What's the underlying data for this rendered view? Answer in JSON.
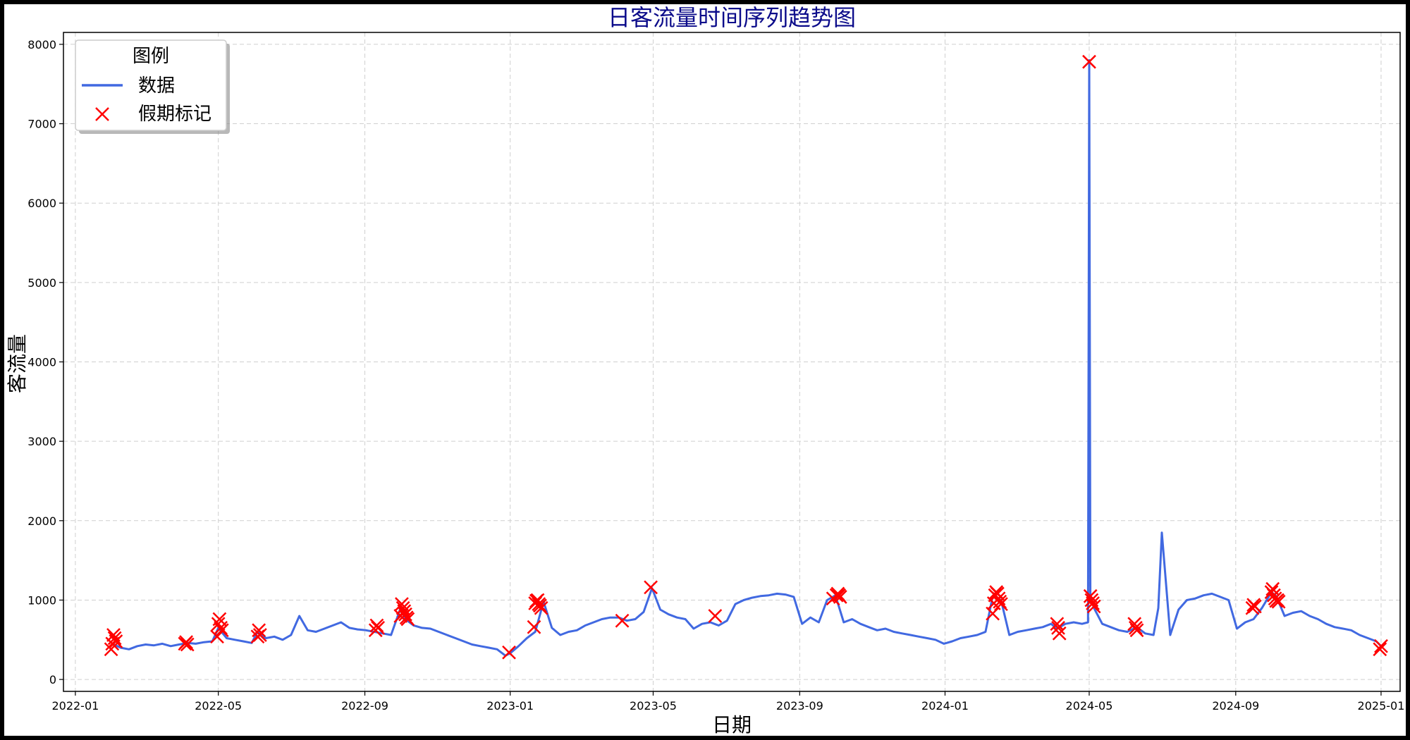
{
  "chart_data": {
    "type": "line",
    "title": "日客流量时间序列趋势图",
    "xlabel": "日期",
    "ylabel": "客流量",
    "xlim": [
      "2021-12-22",
      "2025-01-17"
    ],
    "ylim": [
      -150,
      8150
    ],
    "x_ticks": [
      "2022-01",
      "2022-05",
      "2022-09",
      "2023-01",
      "2023-05",
      "2023-09",
      "2024-01",
      "2024-05",
      "2024-09",
      "2025-01"
    ],
    "y_ticks": [
      0,
      1000,
      2000,
      3000,
      4000,
      5000,
      6000,
      7000,
      8000
    ],
    "grid": true,
    "legend": {
      "title": "图例",
      "position": "top-left",
      "entries": [
        "数据",
        "假期标记"
      ]
    },
    "colors": {
      "line": "#4169e1",
      "marker": "#ff0000",
      "title": "#0b0b8a"
    },
    "series": [
      {
        "name": "数据",
        "type": "line",
        "x": [
          "2022-02-01",
          "2022-02-08",
          "2022-02-15",
          "2022-02-22",
          "2022-03-01",
          "2022-03-08",
          "2022-03-15",
          "2022-03-22",
          "2022-03-29",
          "2022-04-05",
          "2022-04-12",
          "2022-04-19",
          "2022-04-26",
          "2022-05-01",
          "2022-05-08",
          "2022-05-15",
          "2022-05-22",
          "2022-05-29",
          "2022-06-03",
          "2022-06-10",
          "2022-06-17",
          "2022-06-24",
          "2022-07-01",
          "2022-07-08",
          "2022-07-15",
          "2022-07-22",
          "2022-07-29",
          "2022-08-05",
          "2022-08-12",
          "2022-08-19",
          "2022-08-26",
          "2022-09-02",
          "2022-09-09",
          "2022-09-16",
          "2022-09-23",
          "2022-10-01",
          "2022-10-05",
          "2022-10-12",
          "2022-10-19",
          "2022-10-26",
          "2022-11-02",
          "2022-11-09",
          "2022-11-16",
          "2022-11-23",
          "2022-11-30",
          "2022-12-07",
          "2022-12-14",
          "2022-12-21",
          "2022-12-28",
          "2023-01-01",
          "2023-01-08",
          "2023-01-15",
          "2023-01-22",
          "2023-01-29",
          "2023-02-05",
          "2023-02-12",
          "2023-02-19",
          "2023-02-26",
          "2023-03-05",
          "2023-03-12",
          "2023-03-19",
          "2023-03-26",
          "2023-04-02",
          "2023-04-09",
          "2023-04-16",
          "2023-04-23",
          "2023-04-30",
          "2023-05-07",
          "2023-05-14",
          "2023-05-21",
          "2023-05-28",
          "2023-06-04",
          "2023-06-11",
          "2023-06-18",
          "2023-06-25",
          "2023-07-02",
          "2023-07-09",
          "2023-07-16",
          "2023-07-23",
          "2023-07-30",
          "2023-08-06",
          "2023-08-13",
          "2023-08-20",
          "2023-08-27",
          "2023-09-03",
          "2023-09-10",
          "2023-09-17",
          "2023-09-24",
          "2023-10-01",
          "2023-10-08",
          "2023-10-15",
          "2023-10-22",
          "2023-10-29",
          "2023-11-05",
          "2023-11-12",
          "2023-11-19",
          "2023-11-26",
          "2023-12-03",
          "2023-12-10",
          "2023-12-17",
          "2023-12-24",
          "2023-12-31",
          "2024-01-07",
          "2024-01-14",
          "2024-01-21",
          "2024-01-28",
          "2024-02-04",
          "2024-02-10",
          "2024-02-17",
          "2024-02-24",
          "2024-03-02",
          "2024-03-09",
          "2024-03-16",
          "2024-03-23",
          "2024-03-30",
          "2024-04-04",
          "2024-04-11",
          "2024-04-18",
          "2024-04-25",
          "2024-04-30",
          "2024-05-01",
          "2024-05-02",
          "2024-05-05",
          "2024-05-12",
          "2024-05-19",
          "2024-05-26",
          "2024-06-02",
          "2024-06-10",
          "2024-06-17",
          "2024-06-24",
          "2024-06-28",
          "2024-07-01",
          "2024-07-08",
          "2024-07-15",
          "2024-07-22",
          "2024-07-29",
          "2024-08-05",
          "2024-08-12",
          "2024-08-19",
          "2024-08-26",
          "2024-09-02",
          "2024-09-09",
          "2024-09-16",
          "2024-09-23",
          "2024-10-01",
          "2024-10-05",
          "2024-10-12",
          "2024-10-19",
          "2024-10-26",
          "2024-11-02",
          "2024-11-09",
          "2024-11-16",
          "2024-11-23",
          "2024-11-30",
          "2024-12-07",
          "2024-12-14",
          "2024-12-21",
          "2024-12-28",
          "2025-01-01"
        ],
        "values": [
          450,
          400,
          380,
          420,
          440,
          430,
          450,
          420,
          440,
          460,
          450,
          470,
          480,
          650,
          520,
          500,
          480,
          460,
          600,
          520,
          540,
          500,
          560,
          800,
          620,
          600,
          640,
          680,
          720,
          650,
          630,
          620,
          600,
          580,
          560,
          900,
          760,
          680,
          650,
          640,
          600,
          560,
          520,
          480,
          440,
          420,
          400,
          380,
          300,
          330,
          420,
          520,
          600,
          980,
          650,
          560,
          600,
          620,
          680,
          720,
          760,
          780,
          780,
          740,
          760,
          850,
          1150,
          880,
          820,
          780,
          760,
          640,
          700,
          720,
          680,
          740,
          950,
          1000,
          1030,
          1050,
          1060,
          1080,
          1070,
          1040,
          700,
          780,
          720,
          1000,
          1060,
          720,
          760,
          700,
          660,
          620,
          640,
          600,
          580,
          560,
          540,
          520,
          500,
          450,
          480,
          520,
          540,
          560,
          600,
          1050,
          1000,
          560,
          600,
          620,
          640,
          660,
          700,
          640,
          700,
          720,
          700,
          720,
          7800,
          1050,
          900,
          700,
          660,
          620,
          600,
          660,
          580,
          560,
          900,
          1850,
          560,
          880,
          1000,
          1020,
          1060,
          1080,
          1040,
          1000,
          640,
          720,
          760,
          900,
          1100,
          1050,
          800,
          840,
          860,
          800,
          760,
          700,
          660,
          640,
          620,
          560,
          520,
          480,
          420
        ]
      },
      {
        "name": "假期标记",
        "type": "scatter",
        "marker": "x",
        "x": [
          "2022-01-31",
          "2022-02-01",
          "2022-02-02",
          "2022-02-03",
          "2022-02-04",
          "2022-04-03",
          "2022-04-04",
          "2022-04-05",
          "2022-04-30",
          "2022-05-01",
          "2022-05-02",
          "2022-05-03",
          "2022-05-04",
          "2022-06-03",
          "2022-06-04",
          "2022-06-05",
          "2022-09-10",
          "2022-09-11",
          "2022-09-12",
          "2022-10-01",
          "2022-10-02",
          "2022-10-03",
          "2022-10-04",
          "2022-10-05",
          "2022-10-06",
          "2022-10-07",
          "2022-12-31",
          "2023-01-21",
          "2023-01-22",
          "2023-01-23",
          "2023-01-24",
          "2023-01-25",
          "2023-01-26",
          "2023-01-27",
          "2023-04-05",
          "2023-04-29",
          "2023-06-22",
          "2023-09-29",
          "2023-10-02",
          "2023-10-03",
          "2023-10-04",
          "2023-10-05",
          "2024-02-10",
          "2024-02-11",
          "2024-02-12",
          "2024-02-13",
          "2024-02-14",
          "2024-02-15",
          "2024-02-16",
          "2024-02-17",
          "2024-04-04",
          "2024-04-05",
          "2024-04-06",
          "2024-05-01",
          "2024-05-02",
          "2024-05-03",
          "2024-05-04",
          "2024-05-05",
          "2024-06-08",
          "2024-06-09",
          "2024-06-10",
          "2024-09-15",
          "2024-09-16",
          "2024-09-17",
          "2024-10-01",
          "2024-10-02",
          "2024-10-03",
          "2024-10-04",
          "2024-10-05",
          "2024-10-06",
          "2024-10-07",
          "2024-12-31",
          "2025-01-01"
        ],
        "values": [
          380,
          450,
          560,
          520,
          480,
          450,
          470,
          440,
          540,
          700,
          760,
          650,
          620,
          540,
          620,
          560,
          620,
          680,
          650,
          800,
          950,
          900,
          860,
          820,
          780,
          760,
          340,
          660,
          960,
          990,
          1000,
          950,
          930,
          900,
          740,
          1160,
          800,
          1020,
          1060,
          1080,
          1060,
          1040,
          830,
          960,
          1060,
          1100,
          1080,
          1020,
          980,
          950,
          700,
          650,
          580,
          7780,
          1050,
          1000,
          960,
          920,
          700,
          650,
          620,
          900,
          940,
          920,
          1100,
          1140,
          1060,
          1020,
          990,
          1000,
          980,
          380,
          420
        ]
      }
    ]
  }
}
